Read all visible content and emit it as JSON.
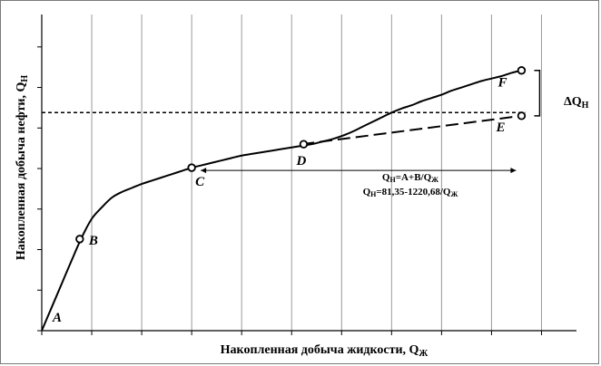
{
  "chart_data": {
    "type": "line",
    "xlabel": {
      "main": "Накопленная добыча жидкости, Q",
      "sub": "Ж"
    },
    "ylabel": {
      "main": "Накопленная добыча нефти, Q",
      "sub": "Н"
    },
    "curve": {
      "x": [
        0,
        1,
        2,
        3,
        4,
        5,
        6,
        7,
        8,
        9,
        10,
        11,
        12,
        13,
        14,
        15,
        16,
        17,
        18,
        19,
        20,
        21,
        22,
        23,
        24,
        25,
        26,
        27,
        28,
        29,
        30,
        31,
        32,
        33,
        34,
        35,
        36,
        37,
        38,
        39,
        40,
        41,
        42,
        43,
        44,
        45,
        46,
        47,
        48
      ],
      "y": [
        0,
        2.9,
        5.8,
        8.7,
        11.5,
        13.8,
        15.2,
        16.4,
        17.1,
        17.6,
        18.1,
        18.5,
        18.9,
        19.3,
        19.7,
        20.1,
        20.4,
        20.7,
        21.0,
        21.3,
        21.6,
        21.8,
        22.0,
        22.2,
        22.4,
        22.6,
        22.8,
        23.0,
        23.3,
        23.6,
        24.0,
        24.5,
        25.1,
        25.7,
        26.3,
        26.9,
        27.4,
        27.8,
        28.3,
        28.7,
        29.1,
        29.6,
        30.0,
        30.4,
        30.8,
        31.1,
        31.4,
        31.8,
        32.1
      ]
    },
    "extrapolation": {
      "x": [
        26,
        48
      ],
      "y": [
        23.0,
        26.5
      ]
    },
    "hline_y": 26.9,
    "xlim": [
      0,
      53.5
    ],
    "ylim": [
      0,
      39
    ],
    "xtick_step": 5,
    "ytick_step": 5,
    "points": [
      {
        "label": "A",
        "x": 0,
        "y": 0,
        "marker": false
      },
      {
        "label": "B",
        "x": 3.8,
        "y": 11.3,
        "marker": true
      },
      {
        "label": "C",
        "x": 15,
        "y": 20.1,
        "marker": true
      },
      {
        "label": "D",
        "x": 26.2,
        "y": 23.0,
        "marker": true
      },
      {
        "label": "E",
        "x": 48,
        "y": 26.5,
        "marker": true
      },
      {
        "label": "F",
        "x": 48,
        "y": 32.1,
        "marker": true
      }
    ],
    "delta": {
      "main": "ΔQ",
      "sub": "Н"
    },
    "annotation": {
      "line1": {
        "a": "Q",
        "a_sub": "Н",
        "b": "=A+B/Q",
        "b_sub": "Ж"
      },
      "line2": {
        "a": "Q",
        "a_sub": "Н",
        "b": "=81,35-1220,68/Q",
        "b_sub": "Ж"
      }
    }
  }
}
